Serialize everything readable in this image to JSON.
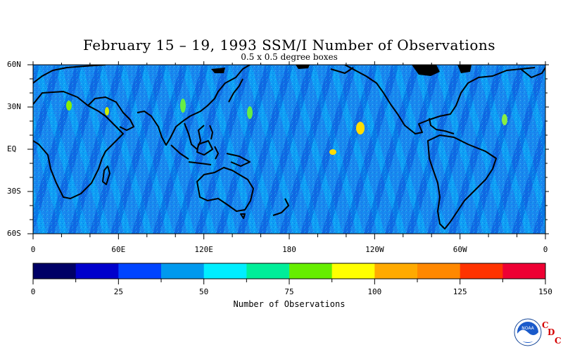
{
  "title": "February 15 – 19, 1993 SSM/I Number of Observations",
  "subtitle": "0.5 x 0.5 degree boxes",
  "lat_labels": [
    "60N",
    "30N",
    "EQ",
    "30S",
    "60S"
  ],
  "lon_labels": [
    "0",
    "60E",
    "120E",
    "180",
    "120W",
    "60W",
    "0"
  ],
  "colorbar": {
    "title": "Number of Observations",
    "tick_labels": [
      "0",
      "25",
      "50",
      "75",
      "100",
      "125",
      "150"
    ],
    "colors": [
      "#000066",
      "#0000cc",
      "#0044ff",
      "#0099ee",
      "#00eeff",
      "#00ee99",
      "#66ee00",
      "#ffff00",
      "#ffaa00",
      "#ff8800",
      "#ff3300",
      "#ee0033"
    ]
  },
  "chart_data": {
    "type": "heatmap",
    "title": "February 15 – 19, 1993 SSM/I Number of Observations",
    "xlabel": "",
    "ylabel": "",
    "x_range": [
      0,
      360
    ],
    "y_range": [
      -60,
      60
    ],
    "value_range": [
      0,
      150
    ],
    "grid": false
  },
  "logo": {
    "icon": "noaa-logo-icon",
    "letters": [
      "C",
      "D",
      "C"
    ],
    "inner_text": "NOAA"
  }
}
